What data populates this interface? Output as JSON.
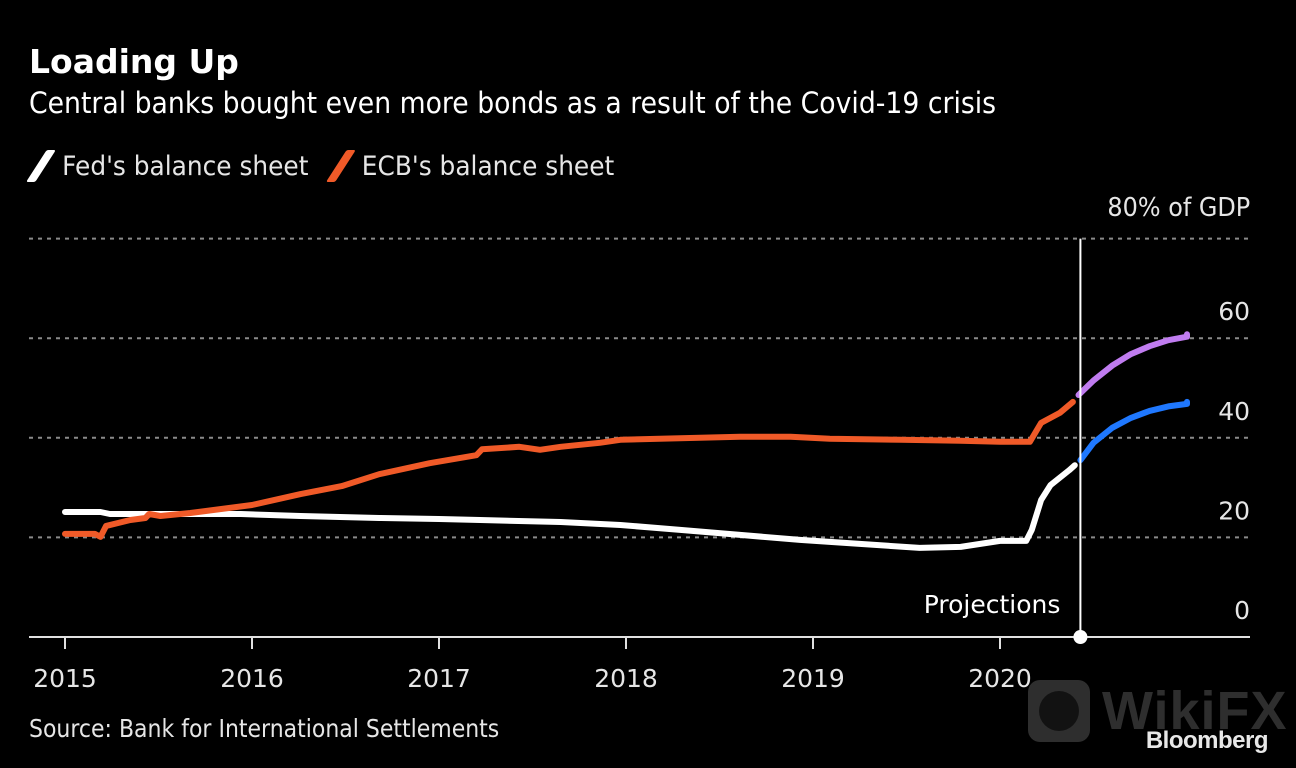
{
  "header": {
    "title": "Loading Up",
    "subtitle": "Central banks bought even more bonds as a result of the Covid-19 crisis"
  },
  "legend": [
    {
      "label": "Fed's balance sheet",
      "color": "#ffffff"
    },
    {
      "label": "ECB's balance sheet",
      "color": "#f05a28"
    }
  ],
  "footer": {
    "source": "Source: Bank for International Settlements",
    "brand": "Bloomberg",
    "watermark": "WikiFX"
  },
  "chart_data": {
    "type": "line",
    "title": "Loading Up",
    "subtitle": "Central banks bought even more bonds as a result of the Covid-19 crisis",
    "xlabel": "",
    "ylabel": "% of GDP",
    "y_unit_label": "80% of GDP",
    "xlim": [
      2015.0,
      2021.0
    ],
    "ylim": [
      0,
      80
    ],
    "x_ticks": [
      2015,
      2016,
      2017,
      2018,
      2019,
      2020
    ],
    "x_tick_labels": [
      "2015",
      "2016",
      "2017",
      "2018",
      "2019",
      "2020"
    ],
    "y_ticks": [
      0,
      20,
      40,
      60,
      80
    ],
    "y_tick_labels": [
      "0",
      "20",
      "40",
      "60",
      "80% of GDP"
    ],
    "grid": "horizontal dotted",
    "legend_position": "top-left",
    "annotations": [
      {
        "text": "Projections",
        "x": 2020.43,
        "type": "vertical-line"
      }
    ],
    "series": [
      {
        "name": "Fed's balance sheet",
        "color": "#ffffff",
        "x": [
          2015.0,
          2015.19,
          2015.24,
          2015.94,
          2016.26,
          2016.47,
          2016.68,
          2017.0,
          2017.22,
          2017.65,
          2017.97,
          2018.29,
          2018.61,
          2018.93,
          2019.25,
          2019.57,
          2019.79,
          2020.0,
          2020.14,
          2020.17,
          2020.22,
          2020.27,
          2020.37,
          2020.4
        ],
        "values": [
          25.1,
          25.1,
          24.7,
          24.7,
          24.3,
          24.1,
          23.9,
          23.7,
          23.5,
          23.1,
          22.5,
          21.5,
          20.5,
          19.5,
          18.7,
          17.9,
          18.1,
          19.3,
          19.3,
          21.5,
          27.5,
          30.5,
          33.5,
          34.5
        ]
      },
      {
        "name": "ECB's balance sheet",
        "color": "#f05a28",
        "x": [
          2015.0,
          2015.16,
          2015.19,
          2015.22,
          2015.35,
          2015.43,
          2015.45,
          2015.51,
          2015.67,
          2016.0,
          2016.26,
          2016.48,
          2016.68,
          2016.95,
          2017.2,
          2017.23,
          2017.43,
          2017.54,
          2017.65,
          2017.86,
          2017.97,
          2018.18,
          2018.61,
          2018.88,
          2019.09,
          2019.47,
          2019.79,
          2020.0,
          2020.16,
          2020.22,
          2020.32,
          2020.39
        ],
        "values": [
          20.7,
          20.7,
          20.1,
          22.3,
          23.5,
          23.9,
          24.7,
          24.3,
          24.9,
          26.5,
          28.7,
          30.3,
          32.7,
          34.9,
          36.5,
          37.7,
          38.2,
          37.6,
          38.2,
          39.0,
          39.6,
          39.8,
          40.2,
          40.2,
          39.8,
          39.6,
          39.4,
          39.2,
          39.2,
          43.0,
          45.0,
          47.2
        ]
      },
      {
        "name": "Fed projection",
        "color": "#1f78ff",
        "x": [
          2020.43,
          2020.5,
          2020.6,
          2020.7,
          2020.8,
          2020.9,
          2021.0,
          2021.0
        ],
        "values": [
          35.5,
          39.0,
          42.0,
          44.0,
          45.4,
          46.3,
          46.8,
          47.2
        ]
      },
      {
        "name": "ECB projection",
        "color": "#c07cf0",
        "x": [
          2020.42,
          2020.5,
          2020.6,
          2020.7,
          2020.8,
          2020.9,
          2021.0,
          2021.0
        ],
        "values": [
          48.6,
          51.5,
          54.5,
          56.8,
          58.4,
          59.6,
          60.3,
          60.8
        ]
      }
    ]
  }
}
